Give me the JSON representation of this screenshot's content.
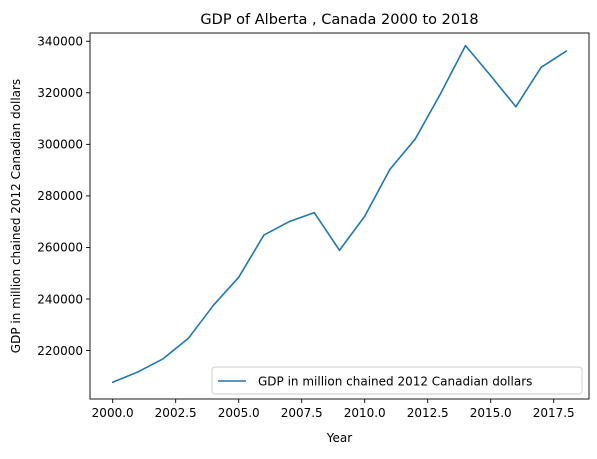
{
  "chart_data": {
    "type": "line",
    "title": "GDP of Alberta , Canada 2000 to 2018",
    "xlabel": "Year",
    "ylabel": "GDP in million chained 2012 Canadian dollars",
    "xlim": [
      1999.1,
      2018.9
    ],
    "ylim": [
      201200,
      343200
    ],
    "x_ticks": [
      2000.0,
      2002.5,
      2005.0,
      2007.5,
      2010.0,
      2012.5,
      2015.0,
      2017.5
    ],
    "x_tick_labels": [
      "2000.0",
      "2002.5",
      "2005.0",
      "2007.5",
      "2010.0",
      "2012.5",
      "2015.0",
      "2017.5"
    ],
    "y_ticks": [
      220000,
      240000,
      260000,
      280000,
      300000,
      320000,
      340000
    ],
    "y_tick_labels": [
      "220000",
      "240000",
      "260000",
      "280000",
      "300000",
      "320000",
      "340000"
    ],
    "grid": false,
    "legend_position": "lower-right",
    "series": [
      {
        "name": "GDP in million chained 2012 Canadian dollars",
        "color": "#1f77b4",
        "x": [
          2000,
          2001,
          2002,
          2003,
          2004,
          2005,
          2006,
          2007,
          2008,
          2009,
          2010,
          2011,
          2012,
          2013,
          2014,
          2015,
          2016,
          2017,
          2018
        ],
        "y": [
          207700,
          211700,
          216800,
          224700,
          237600,
          248400,
          264800,
          270000,
          273500,
          258900,
          272100,
          290300,
          302000,
          319500,
          338300,
          326600,
          314600,
          329900,
          336200
        ]
      }
    ]
  }
}
